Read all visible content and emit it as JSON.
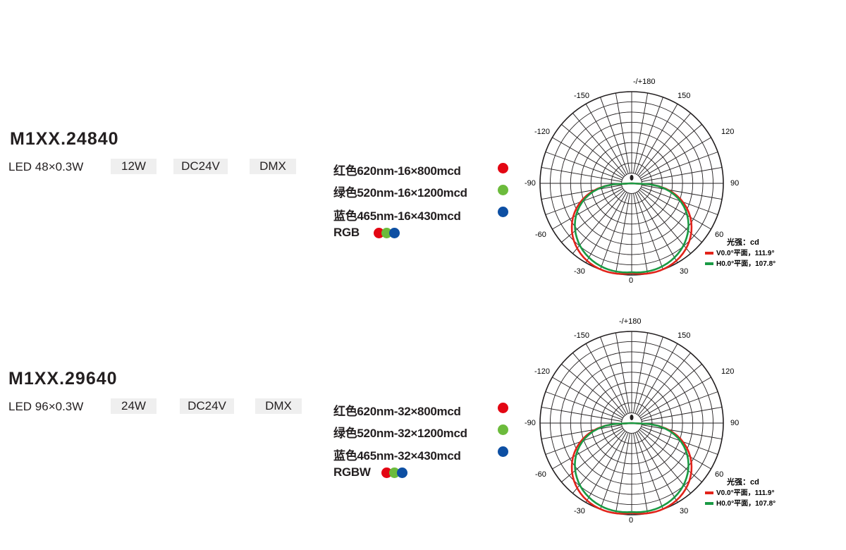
{
  "colors": {
    "red": "#e30613",
    "green": "#6cbb3c",
    "blue": "#0d4fa3",
    "curve_red": "#e2231a",
    "curve_green": "#1a9a44",
    "tag_bg": "#efefef",
    "text": "#231f20"
  },
  "products": [
    {
      "model": "M1XX.24840",
      "led": "LED 48×0.3W",
      "tags": [
        "12W",
        "DC24V",
        "DMX"
      ],
      "color_rows": [
        {
          "label": "红色620nm-16×800mcd",
          "dot": "red"
        },
        {
          "label": "绿色520nm-16×1200mcd",
          "dot": "green"
        },
        {
          "label": "蓝色465nm-16×430mcd",
          "dot": "blue"
        }
      ],
      "mix_label": "RGB",
      "mix_dots": [
        "red",
        "green",
        "blue"
      ],
      "polar": {
        "angle_labels": {
          "top": "-/+180",
          "left_150": "-150",
          "right_150": "150",
          "left_120": "-120",
          "right_120": "120",
          "left_90": "-90",
          "right_90": "90",
          "left_60": "-60",
          "right_60": "60",
          "left_30": "-30",
          "right_30": "30",
          "bottom": "0"
        },
        "legend_title": "光强：cd",
        "legend_v": "V0.0°平面，111.9°",
        "legend_h": "H0.0°平面，107.8°"
      }
    },
    {
      "model": "M1XX.29640",
      "led": "LED 96×0.3W",
      "tags": [
        "24W",
        "DC24V",
        "DMX"
      ],
      "color_rows": [
        {
          "label": "红色620nm-32×800mcd",
          "dot": "red"
        },
        {
          "label": "绿色520nm-32×1200mcd",
          "dot": "green"
        },
        {
          "label": "蓝色465nm-32×430mcd",
          "dot": "blue"
        }
      ],
      "mix_label": "RGBW",
      "mix_dots": [
        "red",
        "green",
        "blue"
      ],
      "polar": {
        "angle_labels": {
          "top": "-/+180",
          "left_150": "-150",
          "right_150": "150",
          "left_120": "-120",
          "right_120": "120",
          "left_90": "-90",
          "right_90": "90",
          "left_60": "-60",
          "right_60": "60",
          "left_30": "-30",
          "right_30": "30",
          "bottom": "0"
        },
        "legend_title": "光强：cd",
        "legend_v": "V0.0°平面，111.9°",
        "legend_h": "H0.0°平面，107.8°"
      }
    }
  ]
}
